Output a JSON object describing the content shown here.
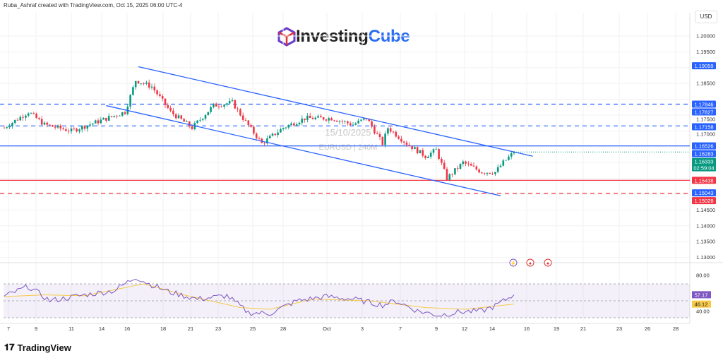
{
  "header": {
    "attribution": "Ruba_Ashraf created with TradingView.com, Oct 15, 2025 06:00 UTC-4"
  },
  "logo": {
    "part1": "Investing",
    "part2": "Cube"
  },
  "footer": {
    "brand": "TradingView"
  },
  "colors": {
    "up": "#089981",
    "down": "#f23645",
    "blue": "#2962ff",
    "red": "#f23645",
    "rsi": "#7e57c2",
    "rsi_ma": "#f7c948"
  },
  "chart_data": {
    "type": "candlestick",
    "symbol": "EURUSD",
    "timeframe": "240M",
    "watermark_date": "15/10/2025",
    "watermark_symbol": "EURUSD | 240M",
    "currency": "USD",
    "ylim": [
      1.125,
      1.2045
    ],
    "y_ticks": [
      "1.20000",
      "1.19500",
      "1.18500",
      "1.17500",
      "1.17000",
      "1.14500",
      "1.14000",
      "1.13500",
      "1.13000"
    ],
    "x_ticks": [
      "7",
      "9",
      "11",
      "14",
      "16",
      "18",
      "21",
      "23",
      "25",
      "28",
      "Oct",
      "3",
      "7",
      "9",
      "12",
      "14",
      "16",
      "19",
      "21",
      "23",
      "26",
      "28"
    ],
    "close_path": [
      [
        0,
        1.171
      ],
      [
        9,
        1.176
      ],
      [
        15,
        1.172
      ],
      [
        25,
        1.17
      ],
      [
        35,
        1.173
      ],
      [
        45,
        1.176
      ],
      [
        49,
        1.186
      ],
      [
        55,
        1.184
      ],
      [
        62,
        1.176
      ],
      [
        70,
        1.171
      ],
      [
        78,
        1.178
      ],
      [
        85,
        1.179
      ],
      [
        89,
        1.174
      ],
      [
        96,
        1.166
      ],
      [
        104,
        1.171
      ],
      [
        112,
        1.174
      ],
      [
        122,
        1.174
      ],
      [
        130,
        1.172
      ],
      [
        135,
        1.174
      ],
      [
        141,
        1.166
      ],
      [
        143,
        1.171
      ],
      [
        150,
        1.166
      ],
      [
        157,
        1.162
      ],
      [
        161,
        1.164
      ],
      [
        165,
        1.155
      ],
      [
        171,
        1.16
      ],
      [
        178,
        1.157
      ],
      [
        183,
        1.157
      ],
      [
        186,
        1.16
      ],
      [
        190,
        1.1633
      ]
    ],
    "horizontal_lines": [
      {
        "price": 1.16526,
        "label": "1.16526",
        "color": "#2962ff",
        "style": "solid"
      },
      {
        "price": 1.17846,
        "label": "1.17846",
        "color": "#2962ff",
        "style": "dashed"
      },
      {
        "price": 1.17158,
        "label": "1.17158",
        "color": "#2962ff",
        "style": "dashed"
      },
      {
        "price": 1.15438,
        "label": "1.15438",
        "color": "#f23645",
        "style": "solid"
      },
      {
        "price": 1.15028,
        "label": "1.15028",
        "color": "#f23645",
        "style": "dashed"
      }
    ],
    "price_tags": [
      {
        "price": 1.19059,
        "label": "1.19059",
        "color": "#2962ff"
      },
      {
        "price": 1.17827,
        "label": "1.17827",
        "color": "#2962ff"
      },
      {
        "price": 1.16283,
        "label": "1.16283",
        "color": "#2962ff"
      },
      {
        "price": 1.15043,
        "label": "1.15043",
        "color": "#2962ff"
      }
    ],
    "last_price": {
      "label": "1.16333",
      "countdown": "02:59:04",
      "color": "#089981"
    },
    "channel": {
      "upper": [
        [
          50,
          1.1903
        ],
        [
          197,
          1.162
        ]
      ],
      "lower": [
        [
          38,
          1.178
        ],
        [
          185,
          1.1495
        ]
      ]
    },
    "rsi": {
      "y_ticks": [
        "80.00",
        "40.00"
      ],
      "value": "57.17",
      "ma_value": "46.12",
      "path": [
        [
          0,
          55
        ],
        [
          9,
          67
        ],
        [
          17,
          50
        ],
        [
          30,
          57
        ],
        [
          41,
          62
        ],
        [
          49,
          78
        ],
        [
          54,
          70
        ],
        [
          62,
          60
        ],
        [
          72,
          52
        ],
        [
          83,
          56
        ],
        [
          91,
          36
        ],
        [
          99,
          35
        ],
        [
          109,
          50
        ],
        [
          120,
          55
        ],
        [
          130,
          52
        ],
        [
          141,
          45
        ],
        [
          146,
          50
        ],
        [
          154,
          38
        ],
        [
          162,
          33
        ],
        [
          170,
          37
        ],
        [
          178,
          38
        ],
        [
          183,
          44
        ],
        [
          190,
          57.17
        ]
      ],
      "ma_path": [
        [
          0,
          55
        ],
        [
          15,
          57
        ],
        [
          30,
          56
        ],
        [
          52,
          70
        ],
        [
          67,
          57
        ],
        [
          88,
          42
        ],
        [
          99,
          40
        ],
        [
          115,
          52
        ],
        [
          136,
          50
        ],
        [
          157,
          42
        ],
        [
          172,
          40
        ],
        [
          190,
          46.12
        ]
      ]
    }
  }
}
